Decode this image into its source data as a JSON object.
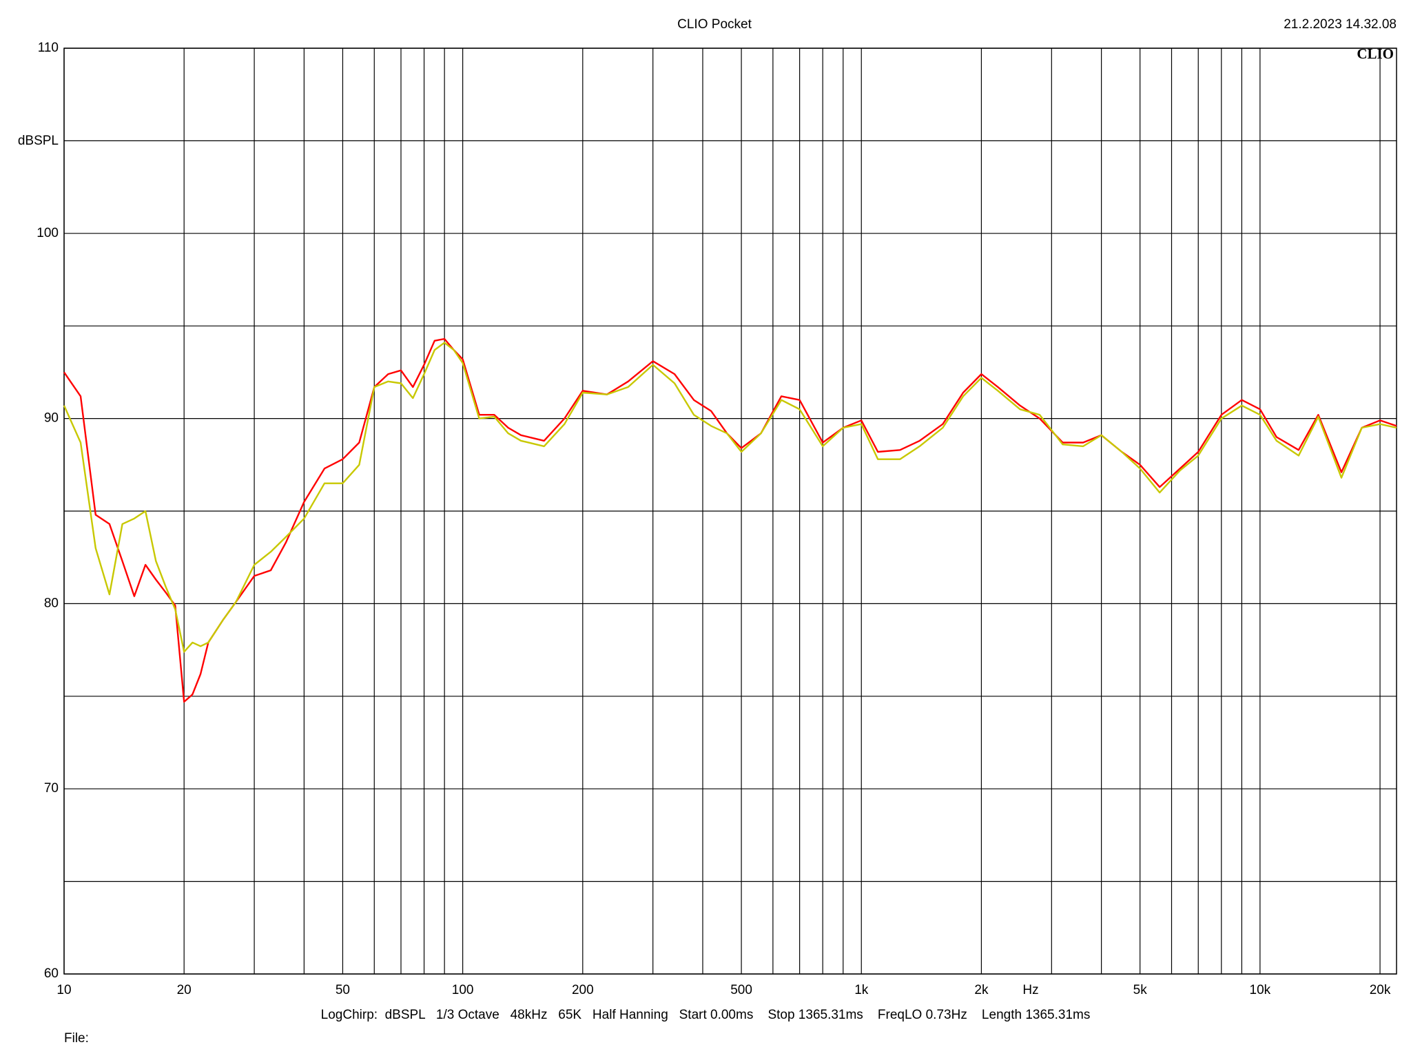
{
  "chart_data": {
    "type": "line",
    "title": "CLIO Pocket",
    "timestamp": "21.2.2023 14.32.08",
    "logo": "CLIO",
    "y_label": "dBSPL",
    "x_label": "Hz",
    "footer": "LogChirp:  dBSPL   1/3 Octave   48kHz   65K   Half Hanning   Start 0.00ms    Stop 1365.31ms    FreqLO 0.73Hz    Length 1365.31ms",
    "file_label": "File:",
    "log_x": true,
    "grid": true,
    "xlim": [
      10,
      22000
    ],
    "ylim": [
      60,
      110
    ],
    "xticks": [
      10,
      20,
      50,
      100,
      200,
      500,
      {
        "value": 1000,
        "label": "1k"
      },
      {
        "value": 2000,
        "label": "2k"
      },
      {
        "value": 5000,
        "label": "5k"
      },
      {
        "value": 10000,
        "label": "10k"
      },
      {
        "value": 20000,
        "label": "20k"
      }
    ],
    "xminor": [
      30,
      40,
      60,
      70,
      80,
      90,
      300,
      400,
      600,
      700,
      800,
      900,
      3000,
      4000,
      6000,
      7000,
      8000,
      9000
    ],
    "yticks": [
      60,
      70,
      80,
      90,
      100,
      110
    ],
    "yminor": [
      65,
      75,
      85,
      95,
      105
    ],
    "x": [
      10,
      11,
      12,
      13,
      14,
      15,
      16,
      17,
      18,
      19,
      20,
      21,
      22,
      23,
      25,
      27,
      30,
      33,
      36,
      40,
      45,
      50,
      55,
      60,
      65,
      70,
      75,
      80,
      85,
      90,
      95,
      100,
      110,
      120,
      130,
      140,
      160,
      180,
      200,
      230,
      260,
      300,
      340,
      380,
      420,
      460,
      500,
      560,
      630,
      700,
      800,
      900,
      1000,
      1100,
      1250,
      1400,
      1600,
      1800,
      2000,
      2200,
      2500,
      2800,
      3200,
      3600,
      4000,
      4500,
      5000,
      5600,
      6300,
      7000,
      8000,
      9000,
      10000,
      11000,
      12500,
      14000,
      16000,
      18000,
      20000,
      22000
    ],
    "series": [
      {
        "color": "#ff0000",
        "values": [
          92.5,
          91.2,
          84.8,
          84.3,
          82.3,
          80.4,
          82.1,
          81.3,
          80.6,
          79.9,
          74.7,
          75.1,
          76.2,
          77.9,
          79.1,
          80.1,
          81.5,
          81.8,
          83.3,
          85.5,
          87.3,
          87.8,
          88.7,
          91.7,
          92.4,
          92.6,
          91.7,
          92.9,
          94.2,
          94.3,
          93.7,
          93.2,
          90.2,
          90.2,
          89.5,
          89.1,
          88.8,
          90.0,
          91.5,
          91.3,
          92.0,
          93.1,
          92.4,
          91.0,
          90.4,
          89.2,
          88.4,
          89.2,
          91.2,
          91.0,
          88.7,
          89.5,
          89.9,
          88.2,
          88.3,
          88.8,
          89.7,
          91.4,
          92.4,
          91.7,
          90.7,
          90.0,
          88.7,
          88.7,
          89.1,
          88.2,
          87.5,
          86.3,
          87.3,
          88.2,
          90.2,
          91.0,
          90.5,
          89.0,
          88.3,
          90.2,
          87.1,
          89.5,
          89.9,
          89.6
        ]
      },
      {
        "color": "#c8c800",
        "values": [
          90.7,
          88.7,
          83.0,
          80.5,
          84.3,
          84.6,
          85.0,
          82.3,
          80.9,
          79.7,
          77.4,
          77.9,
          77.7,
          77.9,
          79.1,
          80.1,
          82.1,
          82.8,
          83.6,
          84.6,
          86.5,
          86.5,
          87.5,
          91.7,
          92.0,
          91.9,
          91.1,
          92.4,
          93.7,
          94.1,
          93.7,
          93.0,
          90.0,
          90.1,
          89.2,
          88.8,
          88.5,
          89.7,
          91.4,
          91.3,
          91.7,
          92.9,
          91.9,
          90.2,
          89.6,
          89.2,
          88.2,
          89.2,
          91.0,
          90.5,
          88.5,
          89.5,
          89.7,
          87.8,
          87.8,
          88.5,
          89.5,
          91.2,
          92.2,
          91.5,
          90.5,
          90.2,
          88.6,
          88.5,
          89.1,
          88.2,
          87.3,
          86.0,
          87.2,
          88.0,
          90.0,
          90.7,
          90.2,
          88.8,
          88.0,
          90.1,
          86.8,
          89.5,
          89.7,
          89.5
        ]
      }
    ]
  }
}
